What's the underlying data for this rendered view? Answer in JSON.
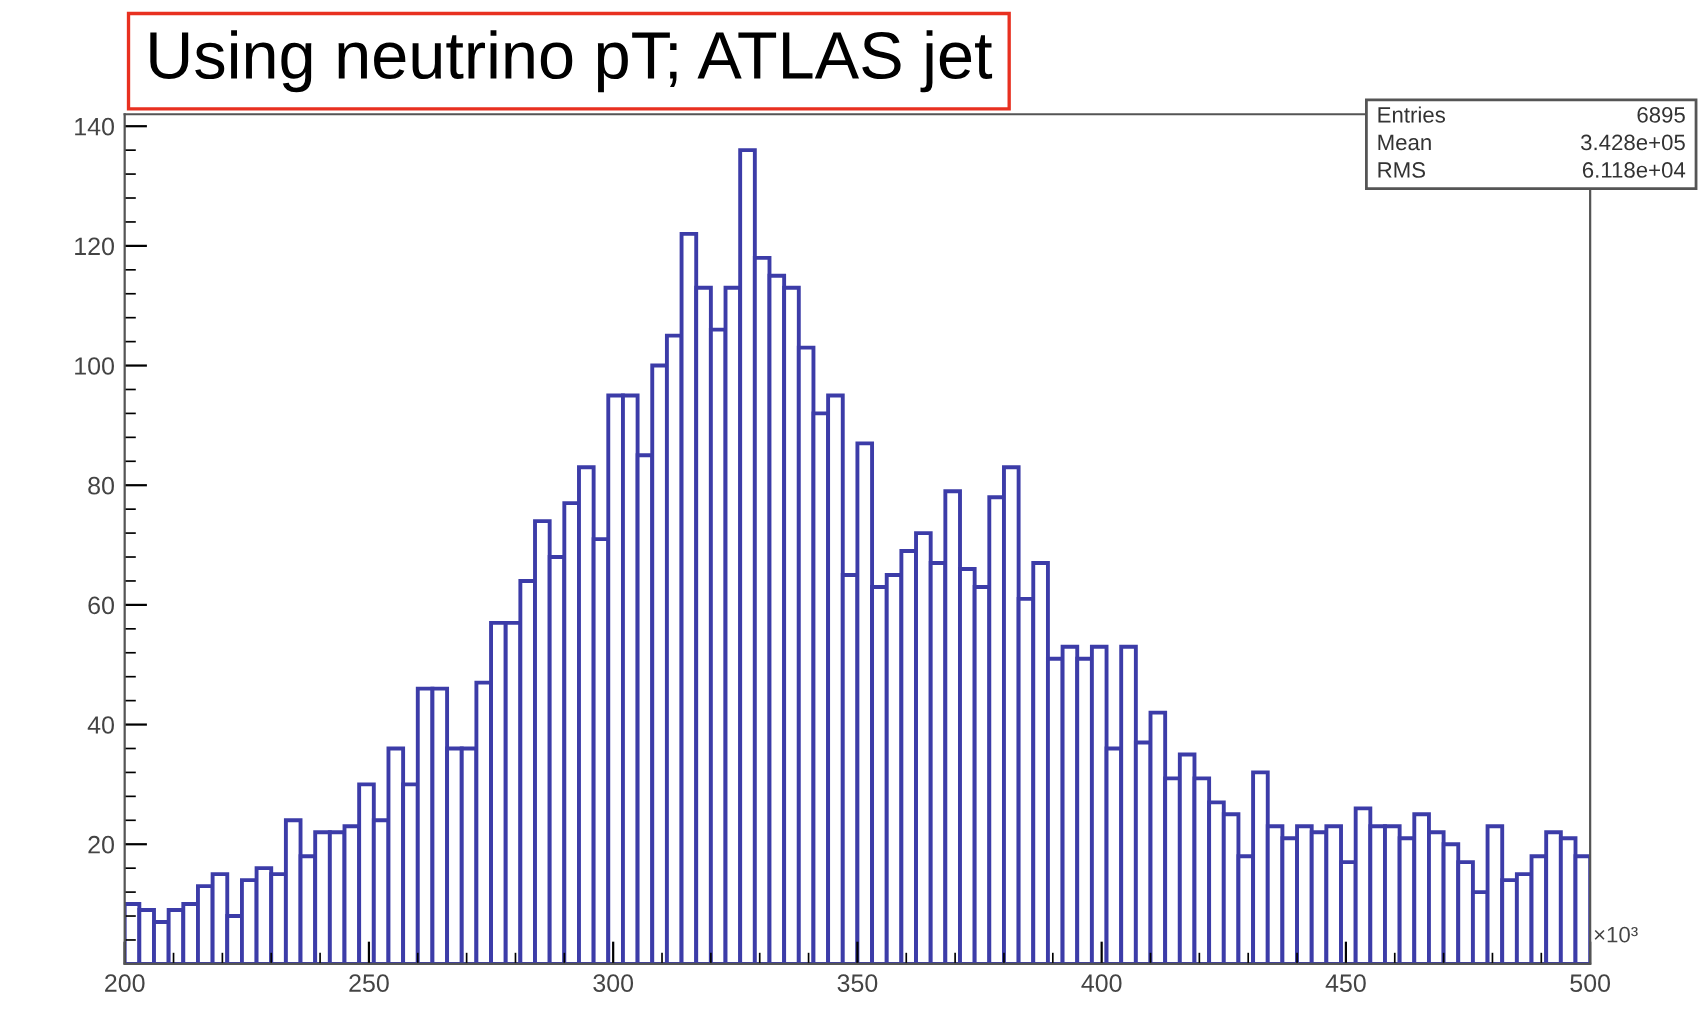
{
  "chart_data": {
    "type": "histogram",
    "title": "Using neutrino pT; ATLAS jet",
    "bins": [
      200,
      203,
      206,
      209,
      212,
      215,
      218,
      221,
      224,
      227,
      230,
      233,
      236,
      239,
      242,
      245,
      248,
      251,
      254,
      257,
      260,
      263,
      266,
      269,
      272,
      275,
      278,
      281,
      284,
      287,
      290,
      293,
      296,
      299,
      302,
      305,
      308,
      311,
      314,
      317,
      320,
      323,
      326,
      329,
      332,
      335,
      338,
      341,
      344,
      347,
      350,
      353,
      356,
      359,
      362,
      365,
      368,
      371,
      374,
      377,
      380,
      383,
      386,
      389,
      392,
      395,
      398,
      401,
      404,
      407,
      410,
      413,
      416,
      419,
      422,
      425,
      428,
      431,
      434,
      437,
      440,
      443,
      446,
      449,
      452,
      455,
      458,
      461,
      464,
      467,
      470,
      473,
      476,
      479,
      482,
      485,
      488,
      491,
      494,
      497,
      500
    ],
    "values": [
      10,
      9,
      7,
      9,
      10,
      13,
      15,
      8,
      14,
      16,
      15,
      24,
      18,
      22,
      22,
      23,
      30,
      24,
      36,
      30,
      46,
      46,
      36,
      36,
      47,
      57,
      57,
      64,
      74,
      68,
      77,
      83,
      71,
      95,
      95,
      85,
      100,
      105,
      122,
      113,
      106,
      113,
      136,
      118,
      115,
      113,
      103,
      92,
      95,
      65,
      87,
      63,
      65,
      69,
      72,
      67,
      79,
      66,
      63,
      78,
      83,
      61,
      67,
      51,
      53,
      51,
      53,
      36,
      53,
      37,
      42,
      31,
      35,
      31,
      27,
      25,
      18,
      32,
      23,
      21,
      23,
      22,
      23,
      17,
      26,
      23,
      23,
      21,
      25,
      22,
      20,
      17,
      12,
      23,
      14,
      15,
      18,
      22,
      21,
      18
    ],
    "color": "#3c3ca8",
    "xlim": [
      200,
      500
    ],
    "ylim": [
      0,
      142
    ],
    "xticks": [
      200,
      250,
      300,
      350,
      400,
      450,
      500
    ],
    "yticks": [
      20,
      40,
      60,
      80,
      100,
      120,
      140
    ],
    "grid": false,
    "annotations": [
      "×10³",
      "Entries",
      "6895",
      "Mean",
      "3.428e+05",
      "RMS",
      "6.118e+04"
    ]
  }
}
